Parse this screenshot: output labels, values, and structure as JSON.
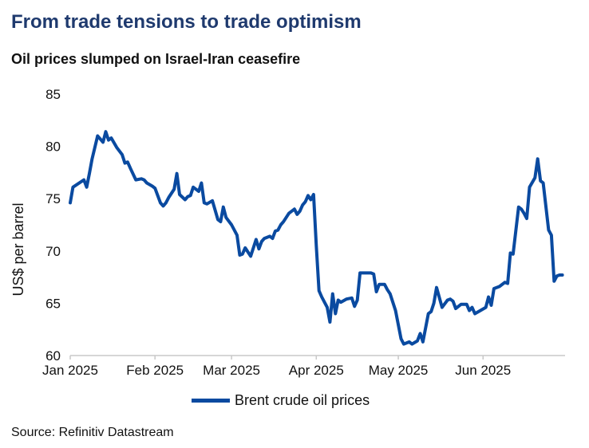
{
  "chart_data": {
    "type": "line",
    "title": "From trade tensions to trade optimism",
    "subtitle": "Oil prices slumped on Israel-Iran ceasefire",
    "xlabel": "",
    "ylabel": "US$ per barrel",
    "ylim": [
      60,
      85
    ],
    "yticks": [
      "85",
      "80",
      "75",
      "70",
      "65",
      "60"
    ],
    "xlim": [
      0,
      181
    ],
    "xticks": [
      {
        "value": 0,
        "label": "Jan 2025"
      },
      {
        "value": 31,
        "label": "Feb 2025"
      },
      {
        "value": 59,
        "label": "Mar 2025"
      },
      {
        "value": 90,
        "label": "Apr 2025"
      },
      {
        "value": 120,
        "label": "May 2025"
      },
      {
        "value": 151,
        "label": "Jun 2025"
      }
    ],
    "grid": false,
    "legend_position": "bottom",
    "series": [
      {
        "name": "Brent crude oil prices",
        "color": "#0a4aa0",
        "x": [
          0,
          1,
          5,
          6,
          7,
          8,
          10,
          12,
          13,
          14,
          15,
          17,
          19,
          20,
          21,
          22,
          24,
          26,
          27,
          28,
          30,
          31,
          33,
          34,
          35,
          36,
          38,
          39,
          40,
          42,
          43,
          44,
          45,
          47,
          48,
          49,
          50,
          52,
          54,
          55,
          56,
          57,
          59,
          61,
          62,
          63,
          64,
          66,
          68,
          69,
          70,
          71,
          73,
          74,
          75,
          76,
          77,
          78,
          80,
          82,
          83,
          84,
          85,
          86,
          87,
          88,
          89,
          90,
          91,
          92,
          94,
          95,
          96,
          97,
          98,
          99,
          101,
          103,
          104,
          105,
          106,
          108,
          110,
          111,
          112,
          113,
          115,
          116,
          117,
          119,
          121,
          122,
          123,
          124,
          125,
          127,
          128,
          129,
          131,
          132,
          133,
          134,
          136,
          138,
          139,
          140,
          141,
          143,
          145,
          146,
          147,
          148,
          150,
          152,
          153,
          154,
          155,
          157,
          159,
          160,
          161,
          162,
          164,
          165,
          166,
          167,
          168,
          170,
          171,
          172,
          173,
          175,
          176,
          177,
          178,
          179,
          180
        ],
        "values": [
          74.6,
          76.1,
          76.8,
          76.1,
          77.4,
          78.8,
          81.0,
          80.4,
          81.4,
          80.6,
          80.8,
          79.9,
          79.2,
          78.4,
          78.5,
          77.9,
          76.8,
          76.9,
          76.8,
          76.5,
          76.2,
          76.0,
          74.6,
          74.3,
          74.6,
          75.1,
          75.9,
          77.4,
          75.4,
          74.9,
          75.2,
          75.3,
          76.1,
          75.7,
          76.5,
          74.6,
          74.5,
          74.8,
          73.0,
          72.8,
          74.2,
          73.2,
          72.5,
          71.5,
          69.6,
          69.7,
          70.3,
          69.5,
          71.1,
          70.2,
          70.9,
          71.2,
          71.4,
          71.2,
          71.9,
          72.0,
          72.5,
          72.8,
          73.6,
          74.0,
          73.5,
          73.8,
          74.4,
          74.7,
          75.3,
          74.9,
          75.4,
          70.5,
          66.2,
          65.6,
          64.6,
          63.2,
          65.9,
          64.0,
          65.3,
          65.1,
          65.4,
          65.5,
          64.7,
          65.3,
          67.9,
          67.9,
          67.9,
          67.8,
          66.1,
          66.8,
          66.8,
          66.3,
          65.9,
          64.3,
          61.6,
          61.1,
          61.2,
          61.3,
          61.1,
          61.4,
          62.1,
          61.3,
          64.0,
          64.2,
          65.0,
          66.5,
          64.6,
          65.3,
          65.4,
          65.2,
          64.5,
          64.9,
          64.9,
          64.3,
          64.6,
          64.0,
          64.3,
          64.6,
          65.6,
          64.8,
          66.4,
          66.6,
          67.0,
          66.9,
          69.8,
          69.7,
          74.2,
          74.0,
          73.6,
          73.1,
          76.1,
          77.0,
          78.8,
          76.7,
          76.5,
          72.0,
          71.5,
          67.1,
          67.6,
          67.7,
          67.7
        ]
      }
    ]
  },
  "page": {
    "title": "From trade tensions to trade optimism",
    "subtitle": "Oil prices slumped on Israel-Iran ceasefire",
    "legend_label": "Brent crude oil prices",
    "source": "Source: Refinitiv Datastream"
  }
}
